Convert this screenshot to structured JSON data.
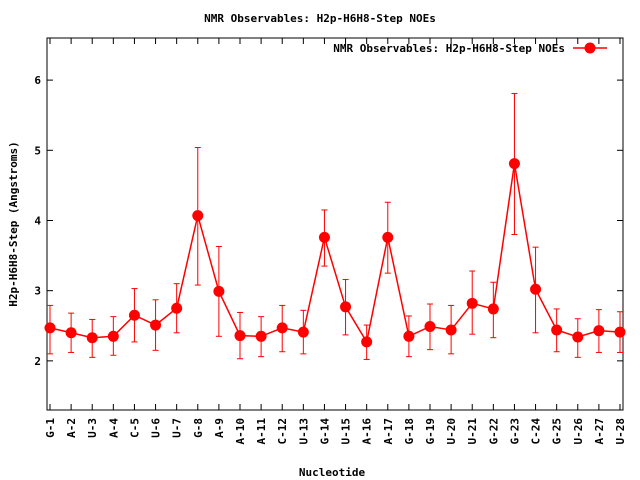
{
  "chart_data": {
    "type": "line",
    "title": "NMR Observables: H2p-H6H8-Step NOEs",
    "xlabel": "Nucleotide",
    "ylabel": "H2p-H6H8-Step (Angstroms)",
    "ylim": [
      1.3,
      6.6
    ],
    "yticks": [
      2,
      3,
      4,
      5,
      6
    ],
    "grid": false,
    "legend_position": "top-right",
    "categories": [
      "G-1",
      "A-2",
      "U-3",
      "A-4",
      "C-5",
      "U-6",
      "U-7",
      "G-8",
      "A-9",
      "A-10",
      "A-11",
      "C-12",
      "U-13",
      "G-14",
      "U-15",
      "A-16",
      "A-17",
      "G-18",
      "G-19",
      "U-20",
      "U-21",
      "G-22",
      "G-23",
      "C-24",
      "G-25",
      "U-26",
      "A-27",
      "U-28"
    ],
    "series": [
      {
        "name": "NMR Observables: H2p-H6H8-Step NOEs",
        "color": "#ff0000",
        "values": [
          2.47,
          2.4,
          2.33,
          2.35,
          2.65,
          2.51,
          2.75,
          4.07,
          2.99,
          2.36,
          2.35,
          2.47,
          2.41,
          3.76,
          2.77,
          2.27,
          3.76,
          2.35,
          2.49,
          2.44,
          2.82,
          2.74,
          4.81,
          3.02,
          2.44,
          2.34,
          2.43,
          2.41
        ],
        "err_low": [
          2.1,
          2.12,
          2.05,
          2.08,
          2.27,
          2.15,
          2.4,
          3.08,
          2.35,
          2.03,
          2.06,
          2.13,
          2.1,
          3.35,
          2.37,
          2.02,
          3.25,
          2.06,
          2.16,
          2.1,
          2.38,
          2.33,
          3.8,
          2.4,
          2.13,
          2.05,
          2.12,
          2.12
        ],
        "err_high": [
          2.79,
          2.68,
          2.59,
          2.63,
          3.03,
          2.87,
          3.1,
          5.04,
          3.63,
          2.69,
          2.63,
          2.79,
          2.72,
          4.15,
          3.16,
          2.51,
          4.26,
          2.64,
          2.81,
          2.79,
          3.28,
          3.12,
          5.81,
          3.62,
          2.74,
          2.6,
          2.73,
          2.7
        ]
      }
    ]
  }
}
